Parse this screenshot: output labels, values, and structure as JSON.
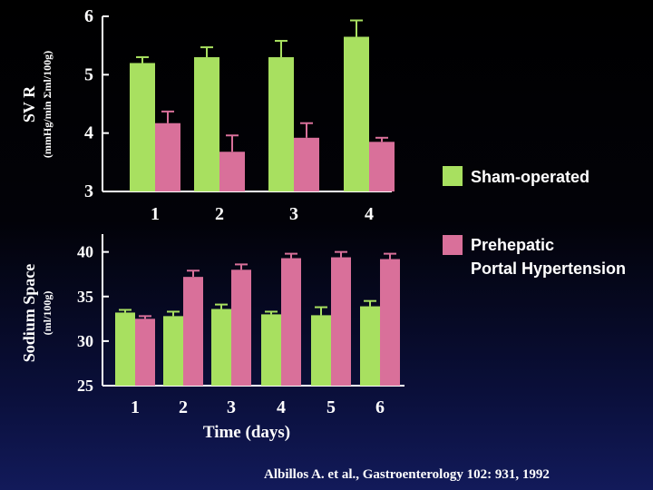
{
  "colors": {
    "sham": "#a8e060",
    "portal": "#d9709a",
    "axis": "#ffffff",
    "background": "#000000"
  },
  "legend": {
    "items": [
      {
        "label_lines": [
          "Sham-operated"
        ],
        "color_key": "sham"
      },
      {
        "label_lines": [
          "Prehepatic",
          "Portal Hypertension"
        ],
        "color_key": "portal"
      }
    ]
  },
  "citation": "Albillos A. et al., Gastroenterology 102: 931, 1992",
  "chart_data": [
    {
      "type": "bar",
      "ylabel_lines": [
        "SV R",
        "(mmHg/min Σml/100g)"
      ],
      "xlabel": "",
      "categories": [
        "1",
        "2",
        "3",
        "4"
      ],
      "ylim": [
        3,
        6
      ],
      "yticks": [
        "3",
        "4",
        "5",
        "6"
      ],
      "series": [
        {
          "values": [
            5.2,
            5.3,
            5.3,
            5.65
          ],
          "errors": [
            0.1,
            0.17,
            0.28,
            0.28
          ],
          "color_key": "sham"
        },
        {
          "values": [
            4.17,
            3.68,
            3.92,
            3.85
          ],
          "errors": [
            0.2,
            0.28,
            0.25,
            0.07
          ],
          "color_key": "portal"
        }
      ]
    },
    {
      "type": "bar",
      "ylabel_lines": [
        "Sodium Space",
        "(ml/100g)"
      ],
      "xlabel": "Time (days)",
      "categories": [
        "1",
        "2",
        "3",
        "4",
        "5",
        "6"
      ],
      "ylim": [
        25,
        42
      ],
      "yticks": [
        "25",
        "30",
        "35",
        "40"
      ],
      "series": [
        {
          "values": [
            33.2,
            32.8,
            33.6,
            33.0,
            32.9,
            33.9
          ],
          "errors": [
            0.3,
            0.5,
            0.5,
            0.3,
            0.9,
            0.6
          ],
          "color_key": "sham"
        },
        {
          "values": [
            32.5,
            37.2,
            38.0,
            39.3,
            39.4,
            39.2
          ],
          "errors": [
            0.3,
            0.7,
            0.6,
            0.5,
            0.6,
            0.6
          ],
          "color_key": "portal"
        }
      ]
    }
  ]
}
